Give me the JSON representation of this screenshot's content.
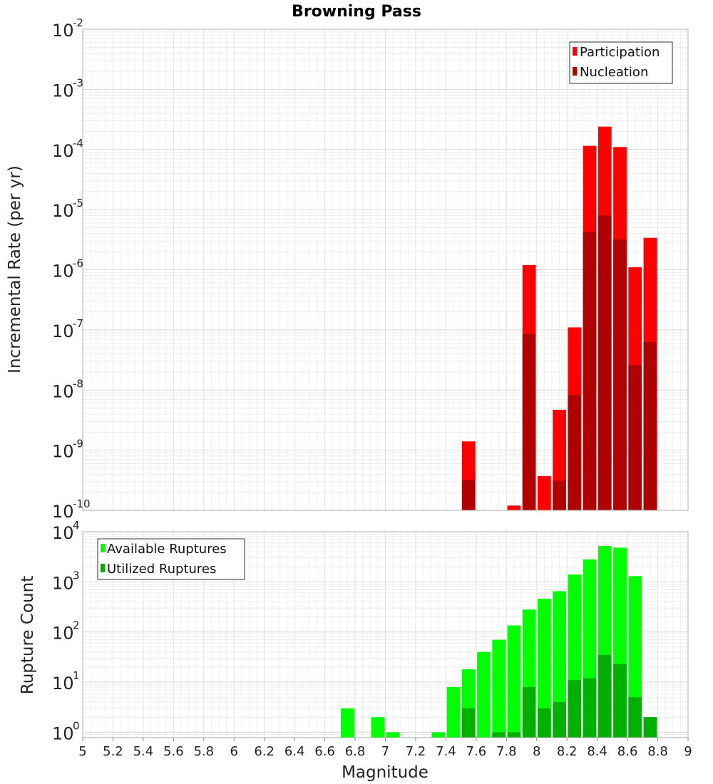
{
  "chart_data": [
    {
      "type": "bar",
      "title": "Browning Pass",
      "xlabel": "",
      "ylabel": "Incremental Rate (per yr)",
      "yscale": "log",
      "ylim": [
        1e-10,
        0.01
      ],
      "xlim": [
        5,
        9
      ],
      "ytick_exponents": [
        "-2",
        "-3",
        "-4",
        "-5",
        "-6",
        "-7",
        "-8",
        "-9",
        "-10"
      ],
      "legend": {
        "position": "top-right",
        "entries": [
          "Participation",
          "Nucleation"
        ]
      },
      "colors": {
        "Participation": "#ff0000",
        "Nucleation": "#b00000"
      },
      "series": [
        {
          "name": "Participation",
          "x": [
            7.55,
            7.85,
            7.95,
            8.05,
            8.15,
            8.25,
            8.35,
            8.45,
            8.55,
            8.65,
            8.75
          ],
          "values": [
            1.4e-09,
            1.2e-10,
            1.2e-06,
            3.7e-10,
            4.7e-09,
            1.1e-07,
            0.000115,
            0.00024,
            0.00011,
            1.1e-06,
            3.4e-06
          ]
        },
        {
          "name": "Nucleation",
          "x": [
            7.55,
            7.95,
            8.15,
            8.25,
            8.35,
            8.45,
            8.55,
            8.65,
            8.75
          ],
          "values": [
            3.2e-10,
            8.5e-08,
            3.1e-10,
            8.3e-09,
            4.3e-06,
            8e-06,
            3.2e-06,
            2.6e-08,
            6.3e-08
          ]
        }
      ]
    },
    {
      "type": "bar",
      "title": "",
      "xlabel": "Magnitude",
      "ylabel": "Rupture Count",
      "yscale": "log",
      "ylim": [
        0.78,
        10000
      ],
      "xlim": [
        5,
        9
      ],
      "ytick_exponents": [
        "4",
        "3",
        "2",
        "1",
        "0"
      ],
      "x_ticks": [
        "5",
        "5.2",
        "5.4",
        "5.6",
        "5.8",
        "6",
        "6.2",
        "6.4",
        "6.6",
        "6.8",
        "7",
        "7.2",
        "7.4",
        "7.6",
        "7.8",
        "8",
        "8.2",
        "8.4",
        "8.6",
        "8.8",
        "9"
      ],
      "legend": {
        "position": "top-left",
        "entries": [
          "Available Ruptures",
          "Utilized Ruptures"
        ]
      },
      "colors": {
        "Available Ruptures": "#00ff00",
        "Utilized Ruptures": "#00b000"
      },
      "series": [
        {
          "name": "Available Ruptures",
          "x": [
            6.75,
            6.95,
            7.05,
            7.35,
            7.45,
            7.55,
            7.65,
            7.75,
            7.85,
            7.95,
            8.05,
            8.15,
            8.25,
            8.35,
            8.45,
            8.55,
            8.65,
            8.75
          ],
          "values": [
            3,
            2,
            1,
            1,
            8,
            18,
            40,
            70,
            135,
            280,
            460,
            650,
            1400,
            2800,
            5200,
            4800,
            1300,
            2
          ]
        },
        {
          "name": "Utilized Ruptures",
          "x": [
            7.55,
            7.75,
            7.85,
            7.95,
            8.05,
            8.15,
            8.25,
            8.35,
            8.45,
            8.55,
            8.65,
            8.75
          ],
          "values": [
            3,
            1,
            1,
            8,
            3,
            4,
            11,
            12,
            35,
            23,
            5,
            2
          ]
        }
      ]
    }
  ]
}
